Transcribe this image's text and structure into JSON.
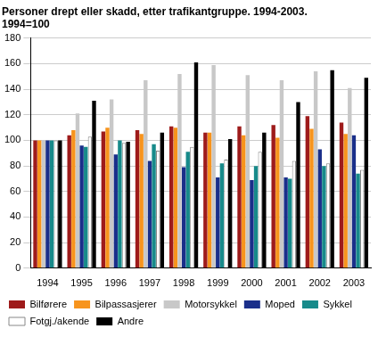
{
  "chart_data": {
    "type": "bar",
    "title": "Personer drept eller skadd, etter trafikantgruppe. 1994-2003.",
    "subtitle": "1994=100",
    "categories": [
      "1994",
      "1995",
      "1996",
      "1997",
      "1998",
      "1999",
      "2000",
      "2001",
      "2002",
      "2003"
    ],
    "series": [
      {
        "name": "Bilførere",
        "color": "#9e1b1b",
        "values": [
          100,
          104,
          107,
          108,
          111,
          106,
          111,
          112,
          119,
          114
        ]
      },
      {
        "name": "Bilpassasjerer",
        "color": "#f7941d",
        "values": [
          100,
          108,
          110,
          105,
          110,
          106,
          104,
          102,
          109,
          105
        ]
      },
      {
        "name": "Motorsykkel",
        "color": "#c8c8c8",
        "values": [
          100,
          121,
          132,
          147,
          152,
          159,
          151,
          147,
          154,
          141
        ]
      },
      {
        "name": "Moped",
        "color": "#1a2f8a",
        "values": [
          100,
          96,
          89,
          84,
          79,
          71,
          69,
          71,
          93,
          104
        ]
      },
      {
        "name": "Sykkel",
        "color": "#178a8a",
        "values": [
          100,
          95,
          100,
          97,
          91,
          82,
          80,
          70,
          80,
          74
        ]
      },
      {
        "name": "Fotgj./akende",
        "color": "#ffffff",
        "values": [
          100,
          103,
          98,
          92,
          95,
          85,
          91,
          84,
          82,
          77
        ]
      },
      {
        "name": "Andre",
        "color": "#000000",
        "values": [
          100,
          131,
          99,
          106,
          161,
          101,
          106,
          130,
          155,
          149
        ]
      }
    ],
    "ylim": [
      0,
      180
    ],
    "yticks": [
      0,
      20,
      40,
      60,
      80,
      100,
      120,
      140,
      160,
      180
    ],
    "grid": true,
    "legend": "bottom"
  }
}
